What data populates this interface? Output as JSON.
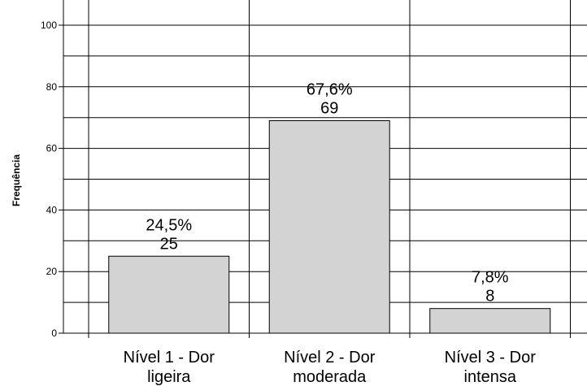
{
  "chart_data": {
    "type": "bar",
    "ylabel": "Frequência",
    "ylim": [
      0,
      100
    ],
    "yticks": [
      0,
      20,
      40,
      60,
      80,
      100
    ],
    "grid": true,
    "categories": [
      [
        "Nível 1 - Dor",
        "ligeira"
      ],
      [
        "Nível 2 - Dor",
        "moderada"
      ],
      [
        "Nível 3 - Dor",
        "intensa"
      ]
    ],
    "values": [
      25,
      69,
      8
    ],
    "percent_labels": [
      "24,5%",
      "67,6%",
      "7,8%"
    ],
    "bar_color": "#d3d3d3"
  }
}
